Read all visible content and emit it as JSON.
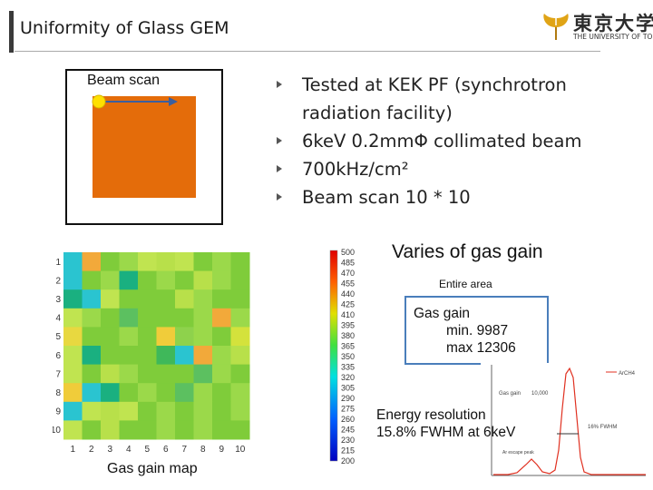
{
  "slide": {
    "title": "Uniformity of Glass GEM"
  },
  "logo": {
    "kanji": "東京大学",
    "english": "THE UNIVERSITY OF TOKYO"
  },
  "beam_scan": {
    "label": "Beam scan",
    "box_color": "#e46c0a",
    "spot_color": "#ffe000",
    "arrow_color": "#3a5fa0"
  },
  "bullets": [
    {
      "text": "Tested at KEK PF (synchrotron radiation facility)"
    },
    {
      "text": "6keV 0.2mmΦ collimated beam"
    },
    {
      "text": "700kHz/cm²"
    },
    {
      "text": "Beam scan 10 * 10"
    }
  ],
  "gain_map": {
    "caption": "Gas gain map",
    "x_ticks": [
      "1",
      "2",
      "3",
      "4",
      "5",
      "6",
      "7",
      "8",
      "9",
      "10"
    ],
    "y_ticks": [
      "1",
      "2",
      "3",
      "4",
      "5",
      "6",
      "7",
      "8",
      "9",
      "10"
    ]
  },
  "colorbar": {
    "ticks": [
      "500",
      "485",
      "470",
      "455",
      "440",
      "425",
      "410",
      "395",
      "380",
      "365",
      "350",
      "335",
      "320",
      "305",
      "290",
      "275",
      "260",
      "245",
      "230",
      "215",
      "200"
    ]
  },
  "annotations": {
    "varies": "Varies of gas gain",
    "entire_area": "Entire area",
    "gain_title": "Gas gain",
    "gain_min": "min. 9987",
    "gain_max": "max 12306",
    "energy_line1": "Energy resolution",
    "energy_line2": "15.8% FWHM at 6keV"
  },
  "spectrum": {
    "legend": "ArCH4",
    "gain_label": "Gas gain",
    "gain_value": "10,000",
    "fwhm_label": "16% FWHM",
    "escape_label": "Ar escape peak",
    "line_color": "#e03020"
  }
}
